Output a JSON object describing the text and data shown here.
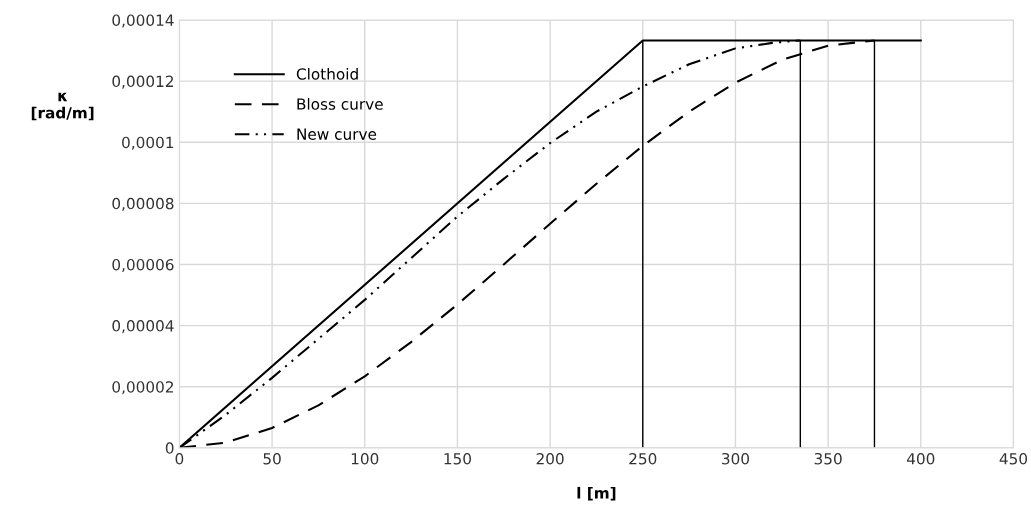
{
  "chart_data": {
    "type": "line",
    "xlabel": "l [m]",
    "ylabel": "κ\n[rad/m]",
    "xlim": [
      0,
      450
    ],
    "xticks": [
      0,
      50,
      100,
      150,
      200,
      250,
      300,
      350,
      400,
      450
    ],
    "ylim": [
      0,
      0.00014
    ],
    "yticks": [
      {
        "value": 0,
        "label": "0"
      },
      {
        "value": 2e-05,
        "label": "0,00002"
      },
      {
        "value": 4e-05,
        "label": "0,00004"
      },
      {
        "value": 6e-05,
        "label": "0,00006"
      },
      {
        "value": 8e-05,
        "label": "0,00008"
      },
      {
        "value": 0.0001,
        "label": "0,0001"
      },
      {
        "value": 0.00012,
        "label": "0,00012"
      },
      {
        "value": 0.00014,
        "label": "0,00014"
      }
    ],
    "grid": true,
    "legend": "top left",
    "marker": "none",
    "series": [
      {
        "name": "Clothoid",
        "color": "#000000",
        "line_style": "solid",
        "x": [
          0,
          250,
          400
        ],
        "values": [
          0,
          0.0001333,
          0.0001333
        ]
      },
      {
        "name": "Bloss curve",
        "color": "#000000",
        "line_style": "dashed",
        "x": [
          0,
          25,
          50,
          75,
          100,
          125,
          150,
          175,
          200,
          225,
          250,
          275,
          300,
          325,
          350,
          375
        ],
        "values": [
          0,
          1.7e-06,
          6.5e-06,
          1.39e-05,
          2.34e-05,
          3.46e-05,
          4.69e-05,
          6e-05,
          7.33e-05,
          8.64e-05,
          9.88e-05,
          0.00011,
          0.0001195,
          0.0001269,
          0.0001316,
          0.0001333
        ]
      },
      {
        "name": "New curve",
        "color": "#000000",
        "line_style": "dashdot",
        "x": [
          0,
          25,
          50,
          100,
          150,
          175,
          200,
          225,
          250,
          275,
          300,
          320,
          335
        ],
        "values": [
          0,
          1.08e-05,
          2.29e-05,
          4.84e-05,
          7.57e-05,
          8.8e-05,
          9.97e-05,
          0.00011,
          0.0001182,
          0.0001255,
          0.0001307,
          0.0001325,
          0.0001333
        ]
      }
    ],
    "ref_lines": [
      {
        "axis": "x",
        "value": 250,
        "color": "#000000"
      },
      {
        "axis": "x",
        "value": 335,
        "color": "#000000"
      },
      {
        "axis": "x",
        "value": 375,
        "color": "#000000"
      }
    ]
  }
}
